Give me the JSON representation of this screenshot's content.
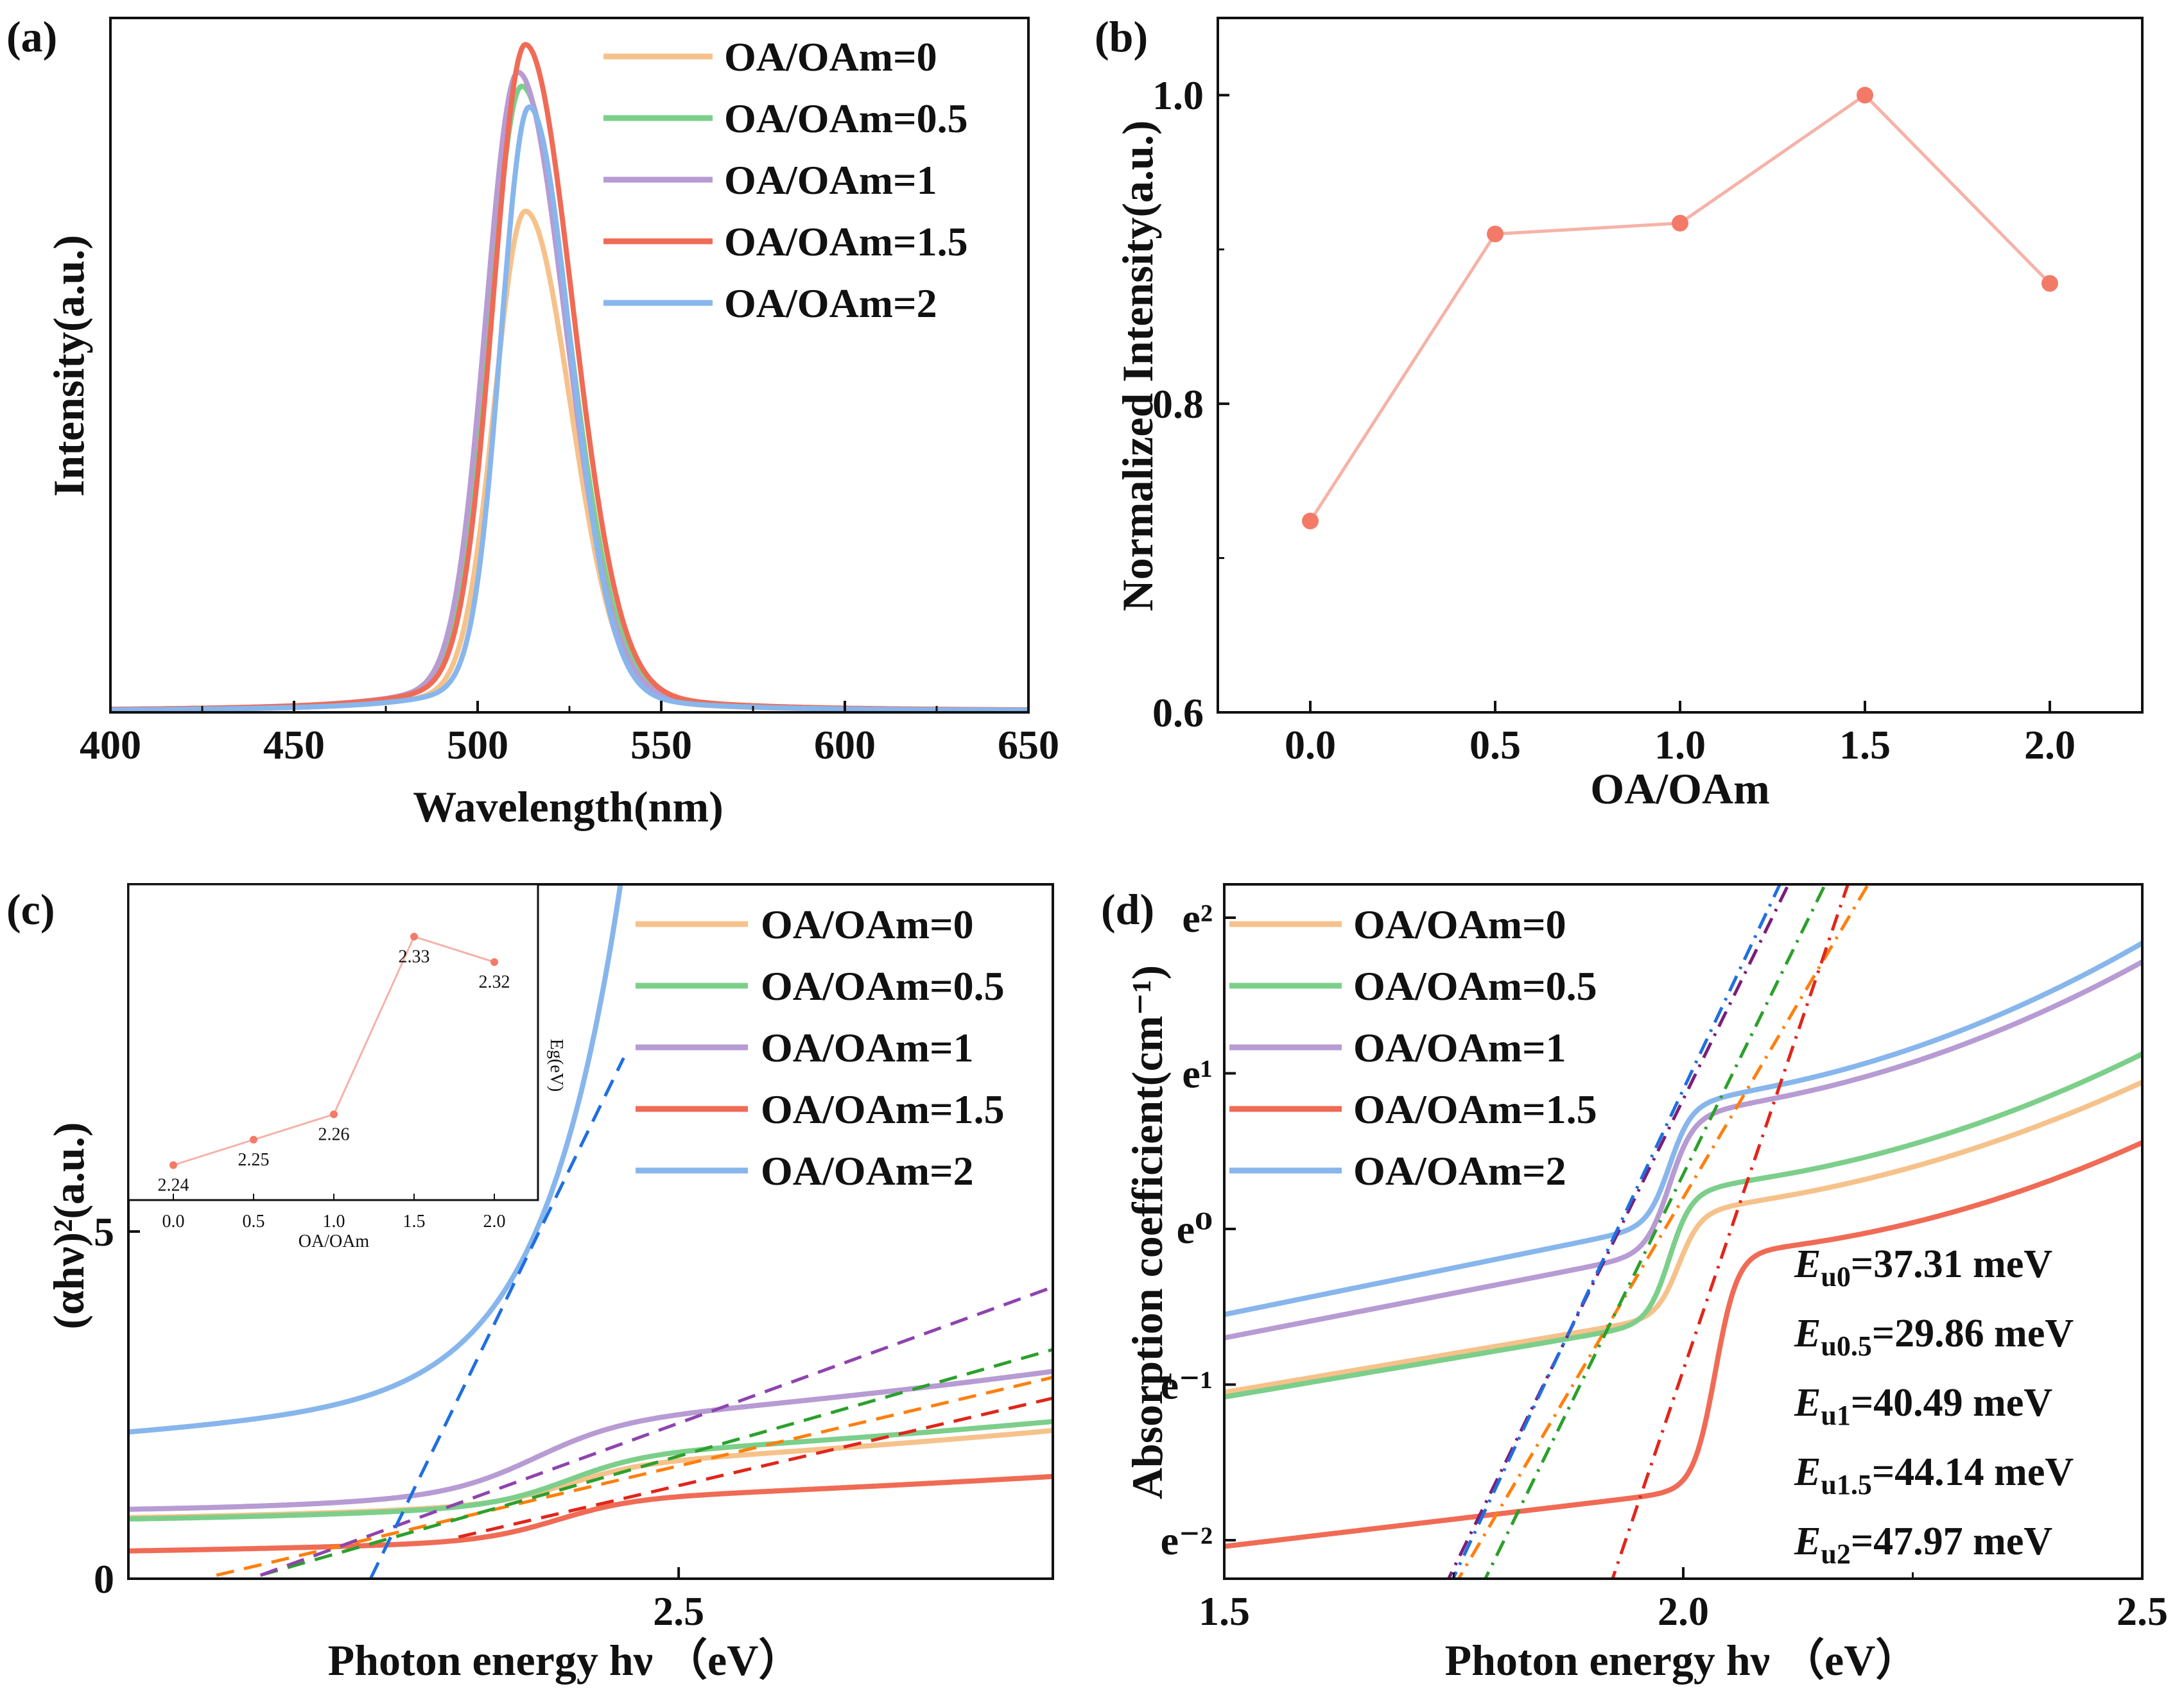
{
  "colors": {
    "oa0": "#f6c28b",
    "oa05": "#7ccf8a",
    "oa1": "#b79bd3",
    "oa15": "#f06b55",
    "oa2": "#87b6ec",
    "point": "#f47a68",
    "line": "#f6b2a8"
  },
  "chart_data": [
    {
      "panel_label": "(a)",
      "type": "line",
      "xlabel": "Wavelength(nm)",
      "ylabel": "Intensity(a.u.)",
      "xlim": [
        400,
        650
      ],
      "xticks": [
        "400",
        "450",
        "500",
        "550",
        "600",
        "650"
      ],
      "legend_position": "top-right",
      "series": [
        {
          "name": "OA/OAm=0",
          "color_key": "oa0",
          "peak_nm": 513,
          "peak": 0.72,
          "fwhm": 23
        },
        {
          "name": "OA/OAm=0.5",
          "color_key": "oa05",
          "peak_nm": 512,
          "peak": 0.9,
          "fwhm": 24
        },
        {
          "name": "OA/OAm=1",
          "color_key": "oa1",
          "peak_nm": 511,
          "peak": 0.92,
          "fwhm": 24
        },
        {
          "name": "OA/OAm=1.5",
          "color_key": "oa15",
          "peak_nm": 513,
          "peak": 0.96,
          "fwhm": 24
        },
        {
          "name": "OA/OAm=2",
          "color_key": "oa2",
          "peak_nm": 514,
          "peak": 0.87,
          "fwhm": 21
        }
      ]
    },
    {
      "panel_label": "(b)",
      "type": "line",
      "xlabel": "OA/OAm",
      "ylabel": "Normalized Intensity(a.u.)",
      "xlim": [
        -0.25,
        2.25
      ],
      "ylim": [
        0.6,
        1.05
      ],
      "xticks": [
        "0.0",
        "0.5",
        "1.0",
        "1.5",
        "2.0"
      ],
      "yticks": [
        "0.6",
        "0.8",
        "1.0"
      ],
      "x": [
        0,
        0.5,
        1.0,
        1.5,
        2.0
      ],
      "y": [
        0.724,
        0.91,
        0.917,
        1.0,
        0.878
      ]
    },
    {
      "panel_label": "(c)",
      "type": "line",
      "xlabel": "Photon energy hν （eV）",
      "ylabel": "(αhν)²(a.u.)",
      "xlim": [
        2.0,
        2.84
      ],
      "ylim": [
        0,
        10
      ],
      "xticks": [
        "2.5"
      ],
      "yticks": [
        "0",
        "5"
      ],
      "legend_position": "top-right",
      "series": [
        {
          "name": "OA/OAm=0",
          "color_key": "oa0"
        },
        {
          "name": "OA/OAm=0.5",
          "color_key": "oa05"
        },
        {
          "name": "OA/OAm=1",
          "color_key": "oa1"
        },
        {
          "name": "OA/OAm=1.5",
          "color_key": "oa15"
        },
        {
          "name": "OA/OAm=2",
          "color_key": "oa2"
        }
      ],
      "inset": {
        "xlabel": "OA/OAm",
        "ylabel": "Eg(eV)",
        "xticks": [
          "0.0",
          "0.5",
          "1.0",
          "1.5",
          "2.0"
        ],
        "x": [
          0,
          0.5,
          1.0,
          1.5,
          2.0
        ],
        "y": [
          2.24,
          2.25,
          2.26,
          2.33,
          2.32
        ],
        "labels": [
          "2.24",
          "2.25",
          "2.26",
          "2.33",
          "2.32"
        ]
      }
    },
    {
      "panel_label": "(d)",
      "type": "line",
      "xlabel": "Photon energy hν （eV）",
      "ylabel": "Absorption coefficient(cm⁻¹)",
      "xlim": [
        1.5,
        2.5
      ],
      "xticks": [
        "1.5",
        "2.0",
        "2.5"
      ],
      "yticks": [
        "e⁻²",
        "e⁻¹",
        "e⁰",
        "e¹",
        "e²"
      ],
      "legend_position": "top-left",
      "series": [
        {
          "name": "OA/OAm=0",
          "color_key": "oa0"
        },
        {
          "name": "OA/OAm=0.5",
          "color_key": "oa05"
        },
        {
          "name": "OA/OAm=1",
          "color_key": "oa1"
        },
        {
          "name": "OA/OAm=1.5",
          "color_key": "oa15"
        },
        {
          "name": "OA/OAm=2",
          "color_key": "oa2"
        }
      ],
      "urbach": [
        {
          "sub": "u0",
          "value": "=37.31 meV"
        },
        {
          "sub": "u0.5",
          "value": "=29.86 meV"
        },
        {
          "sub": "u1",
          "value": "=40.49 meV"
        },
        {
          "sub": "u1.5",
          "value": "=44.14 meV"
        },
        {
          "sub": "u2",
          "value": "=47.97 meV"
        }
      ]
    }
  ]
}
